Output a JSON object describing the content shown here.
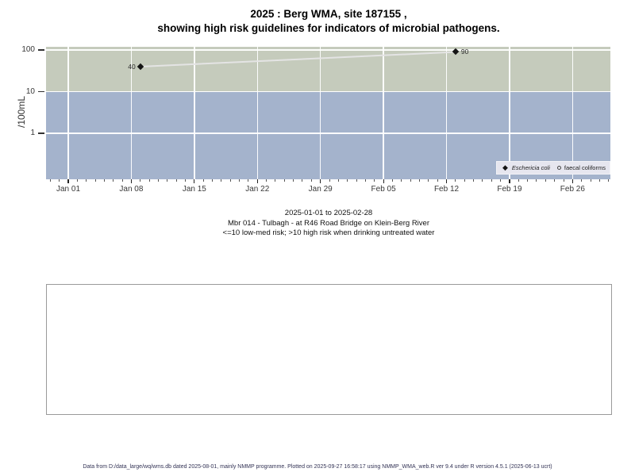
{
  "title": {
    "line1": "2025 : Berg WMA, site 187155 ,",
    "line2": "showing high risk guidelines for indicators of microbial pathogens."
  },
  "y_axis": {
    "label": "/100mL"
  },
  "legend": {
    "items": [
      {
        "marker": "filled-diamond",
        "label": "Eschericia coli"
      },
      {
        "marker": "open-circle",
        "label": "faecal coliforms"
      }
    ]
  },
  "subtitle": {
    "line1": "2025-01-01 to 2025-02-28",
    "line2": "Mbr 014 - Tulbagh - at R46 Road Bridge on Klein-Berg River",
    "line3": "<=10 low-med risk; >10 high risk when drinking untreated water"
  },
  "footer": "Data from D:/data_large/wq/wms.db dated 2025-08-01, mainly NMMP programme. Plotted on 2025-09-27 16:58:17 using NMMP_WMA_web.R ver 9.4 under R version 4.5.1 (2025-06-13 ucrt)",
  "colors": {
    "band_high_risk": "#c5cbbc",
    "band_low_med_risk": "#a4b3cc",
    "gridline": "#ffffff",
    "marker": "#141414",
    "series_line": "#e4e4e4",
    "legend_bg": "#e6e6ef"
  },
  "chart_data": {
    "type": "scatter",
    "title": "2025 : Berg WMA, site 187155 , showing high risk guidelines for indicators of microbial pathogens.",
    "ylabel": "/100mL",
    "y_scale": "log",
    "ylim": [
      0.08,
      120
    ],
    "y_ticks": [
      100,
      10,
      1
    ],
    "x_range": [
      "2025-01-01",
      "2025-02-28"
    ],
    "x_ticks": [
      {
        "label": "Jan 01",
        "day": 0
      },
      {
        "label": "Jan 08",
        "day": 7
      },
      {
        "label": "Jan 15",
        "day": 14
      },
      {
        "label": "Jan 22",
        "day": 21
      },
      {
        "label": "Jan 29",
        "day": 28
      },
      {
        "label": "Feb 05",
        "day": 35
      },
      {
        "label": "Feb 12",
        "day": 42
      },
      {
        "label": "Feb 19",
        "day": 49
      },
      {
        "label": "Feb 26",
        "day": 56
      }
    ],
    "minor_tick_days": [
      -2,
      60
    ],
    "bands": [
      {
        "label": "high risk (>10)",
        "from": 10,
        "to": 120,
        "color": "#c5cbbc"
      },
      {
        "label": "low-med risk (<=10)",
        "from": 0.08,
        "to": 10,
        "color": "#a4b3cc"
      }
    ],
    "series": [
      {
        "name": "Eschericia coli",
        "marker": "filled-diamond",
        "color": "#141414",
        "line_color": "#e4e4e4",
        "points": [
          {
            "date": "2025-01-09",
            "day": 8,
            "value": 40,
            "label": "40",
            "label_side": "left"
          },
          {
            "date": "2025-02-13",
            "day": 43,
            "value": 90,
            "label": "90",
            "label_side": "right"
          }
        ]
      },
      {
        "name": "faecal coliforms",
        "marker": "open-circle",
        "color": "#141414",
        "points": []
      }
    ],
    "legend_position": "bottom-right",
    "grid": true
  }
}
